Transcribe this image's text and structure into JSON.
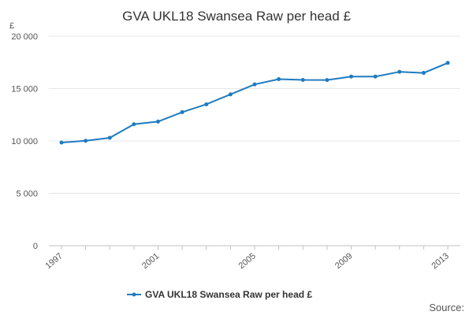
{
  "chart_data": {
    "type": "line",
    "title": "GVA UKL18 Swansea Raw per head £",
    "y_unit": "£",
    "x": [
      1997,
      1998,
      1999,
      2000,
      2001,
      2002,
      2003,
      2004,
      2005,
      2006,
      2007,
      2008,
      2009,
      2010,
      2011,
      2012,
      2013
    ],
    "x_tick_labels": [
      "1997",
      "2001",
      "2005",
      "2009",
      "2013"
    ],
    "x_tick_values": [
      1997,
      2001,
      2005,
      2009,
      2013
    ],
    "y_tick_labels": [
      "0",
      "5 000",
      "10 000",
      "15 000",
      "20 000"
    ],
    "y_tick_values": [
      0,
      5000,
      10000,
      15000,
      20000
    ],
    "ylim": [
      0,
      20000
    ],
    "grid": true,
    "series": [
      {
        "name": "GVA UKL18 Swansea Raw per head £",
        "color": "#1f7bbf",
        "values": [
          9850,
          10020,
          10300,
          11600,
          11850,
          12750,
          13500,
          14450,
          15400,
          15900,
          15830,
          15820,
          16150,
          16150,
          16600,
          16500,
          17450
        ]
      }
    ],
    "legend_position": "bottom",
    "source_label": "Source:"
  }
}
